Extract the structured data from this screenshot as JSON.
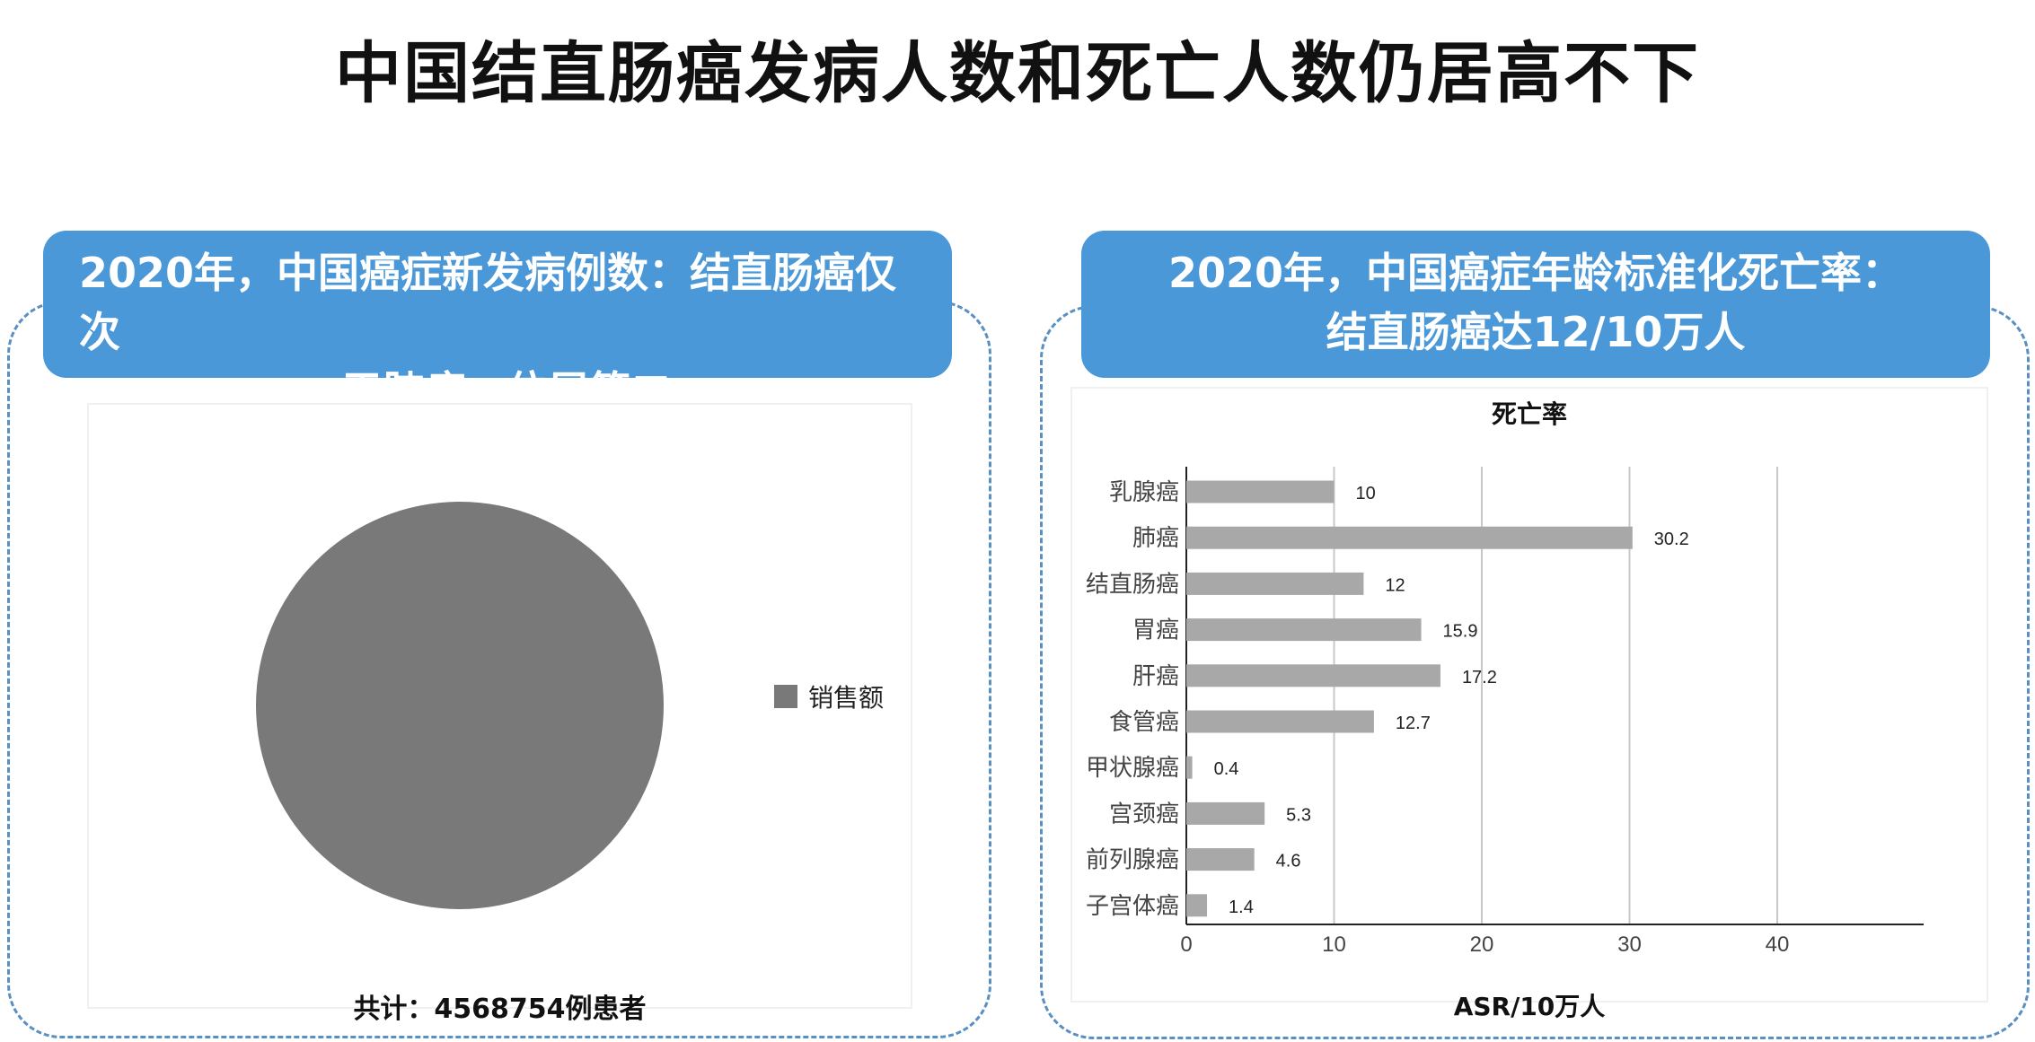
{
  "page": {
    "title": "中国结直肠癌发病人数和死亡人数仍居高不下"
  },
  "left_panel": {
    "header_line1": "2020年，中国癌症新发病例数：结直肠癌仅次",
    "header_line2": "于肺癌，位居第二",
    "total_text": "共计：4568754例患者"
  },
  "right_panel": {
    "header_line1": "2020年，中国癌症年龄标准化死亡率：",
    "header_line2": "结直肠癌达12/10万人"
  },
  "colors": {
    "header_bg": "#4a98d8",
    "pie_fill": "#797979",
    "bar_fill": "#a8a8a8",
    "dashed_border": "#5a8fc2"
  },
  "chart_data": [
    {
      "type": "pie",
      "series": [
        {
          "name": "销售额",
          "values": [
            4568754
          ]
        }
      ],
      "legend": "right"
    },
    {
      "type": "bar",
      "orientation": "horizontal",
      "title": "死亡率",
      "xlabel": "ASR/10万人",
      "ylabel": "",
      "categories": [
        "乳腺癌",
        "肺癌",
        "结直肠癌",
        "胃癌",
        "肝癌",
        "食管癌",
        "甲状腺癌",
        "宫颈癌",
        "前列腺癌",
        "子宫体癌"
      ],
      "values": [
        10,
        30.2,
        12,
        15.9,
        17.2,
        12.7,
        0.4,
        5.3,
        4.6,
        1.4
      ],
      "data_labels": [
        "10",
        "30.2",
        "12",
        "15.9",
        "17.2",
        "12.7",
        "0.4",
        "5.3",
        "4.6",
        "1.4"
      ],
      "xticks": [
        "0",
        "10",
        "20",
        "30",
        "40"
      ],
      "xlim": [
        0,
        50
      ],
      "grid": true
    }
  ]
}
